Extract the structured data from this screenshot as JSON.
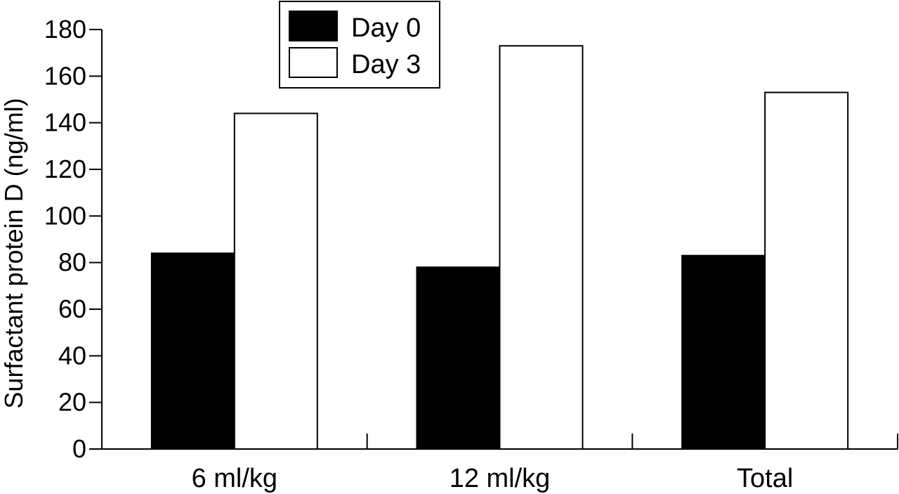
{
  "chart_data": {
    "type": "bar",
    "title": "",
    "xlabel": "",
    "ylabel": "Surfactant protein D (ng/ml)",
    "ylim": [
      0,
      180
    ],
    "yticks": [
      0,
      20,
      40,
      60,
      80,
      100,
      120,
      140,
      160,
      180
    ],
    "categories": [
      "6 ml/kg",
      "12 ml/kg",
      "Total"
    ],
    "series": [
      {
        "name": "Day 0",
        "values": [
          84,
          78,
          83
        ],
        "color": "#000000"
      },
      {
        "name": "Day 3",
        "values": [
          144,
          173,
          153
        ],
        "color": "#ffffff"
      }
    ],
    "grid": false,
    "legend_position": "top-center"
  }
}
